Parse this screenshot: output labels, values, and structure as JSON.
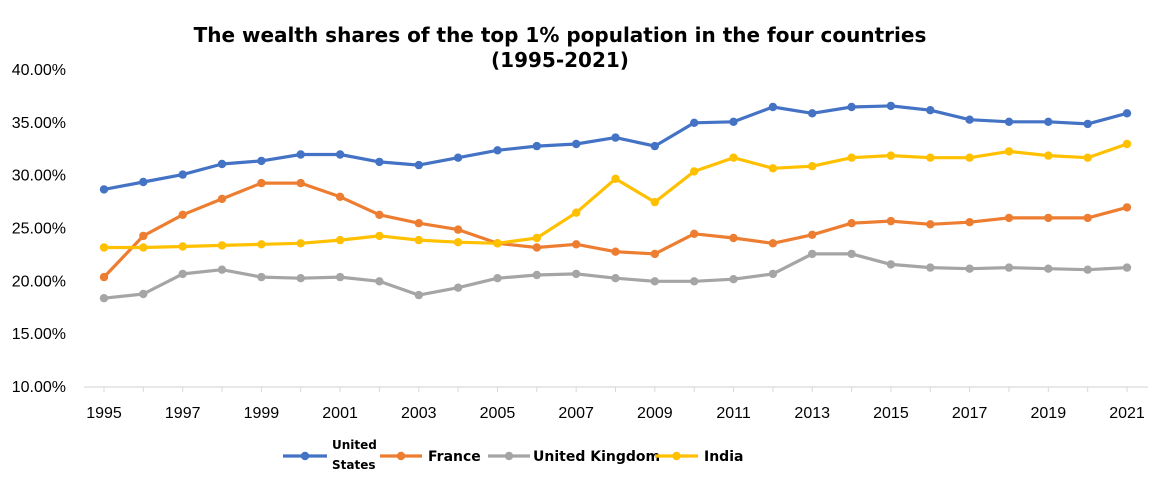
{
  "chart_data": {
    "type": "line",
    "title": "The wealth shares of the top 1% population in the four countries",
    "subtitle": "(1995-2021)",
    "xlabel": "",
    "ylabel": "",
    "x": [
      1995,
      1996,
      1997,
      1998,
      1999,
      2000,
      2001,
      2002,
      2003,
      2004,
      2005,
      2006,
      2007,
      2008,
      2009,
      2010,
      2011,
      2012,
      2013,
      2014,
      2015,
      2016,
      2017,
      2018,
      2019,
      2020,
      2021
    ],
    "x_tick_labels": [
      "1995",
      "1997",
      "1999",
      "2001",
      "2003",
      "2005",
      "2007",
      "2009",
      "2011",
      "2013",
      "2015",
      "2017",
      "2019",
      "2021"
    ],
    "y_tick_labels": [
      "10.00%",
      "15.00%",
      "20.00%",
      "25.00%",
      "30.00%",
      "35.00%",
      "40.00%"
    ],
    "y_ticks": [
      10,
      15,
      20,
      25,
      30,
      35,
      40
    ],
    "ylim": [
      10,
      40
    ],
    "grid": false,
    "legend_position": "bottom",
    "series": [
      {
        "name": "United States",
        "legend_lines": [
          "United",
          "States"
        ],
        "color": "#4472C4",
        "values": [
          28.7,
          29.4,
          30.1,
          31.1,
          31.4,
          32.0,
          32.0,
          31.3,
          31.0,
          31.7,
          32.4,
          32.8,
          33.0,
          33.6,
          32.8,
          35.0,
          35.1,
          36.5,
          35.9,
          36.5,
          36.6,
          36.2,
          35.3,
          35.1,
          35.1,
          34.9,
          35.9
        ]
      },
      {
        "name": "France",
        "color": "#ED7D31",
        "values": [
          20.4,
          24.3,
          26.3,
          27.8,
          29.3,
          29.3,
          28.0,
          26.3,
          25.5,
          24.9,
          23.6,
          23.2,
          23.5,
          22.8,
          22.6,
          24.5,
          24.1,
          23.6,
          24.4,
          25.5,
          25.7,
          25.4,
          25.6,
          26.0,
          26.0,
          26.0,
          27.0
        ]
      },
      {
        "name": "United Kingdom",
        "color": "#A5A5A5",
        "values": [
          18.4,
          18.8,
          20.7,
          21.1,
          20.4,
          20.3,
          20.4,
          20.0,
          18.7,
          19.4,
          20.3,
          20.6,
          20.7,
          20.3,
          20.0,
          20.0,
          20.2,
          20.7,
          22.6,
          22.6,
          21.6,
          21.3,
          21.2,
          21.3,
          21.2,
          21.1,
          21.3
        ]
      },
      {
        "name": "India",
        "color": "#FFC000",
        "values": [
          23.2,
          23.2,
          23.3,
          23.4,
          23.5,
          23.6,
          23.9,
          24.3,
          23.9,
          23.7,
          23.6,
          24.1,
          26.5,
          29.7,
          27.5,
          30.4,
          31.7,
          30.7,
          30.9,
          31.7,
          31.9,
          31.7,
          31.7,
          32.3,
          31.9,
          31.7,
          33.0
        ]
      }
    ]
  }
}
